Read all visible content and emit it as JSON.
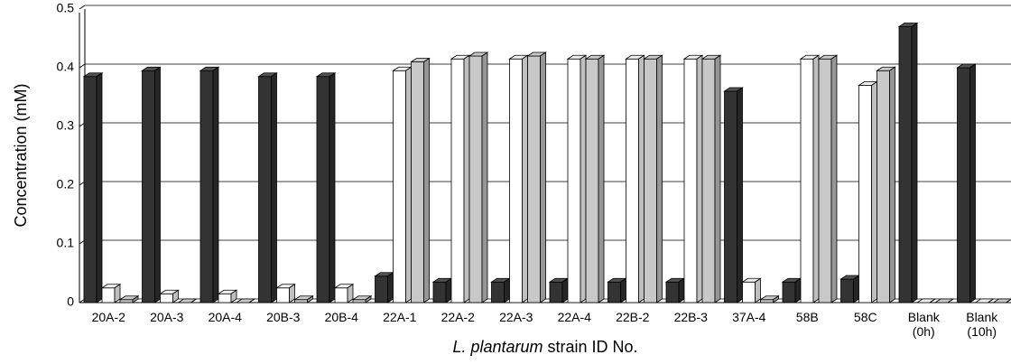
{
  "chart_data": {
    "type": "bar3d",
    "ylabel": "Concentration (mM)",
    "xlabel_italic": "L. plantarum",
    "xlabel": "strain ID No.",
    "categories": [
      "20A-2",
      "20A-3",
      "20A-4",
      "20B-3",
      "20B-4",
      "22A-1",
      "22A-2",
      "22A-3",
      "22A-4",
      "22B-2",
      "22B-3",
      "37A-4",
      "58B",
      "58C",
      "Blank (0h)",
      "Blank (10h)"
    ],
    "series": [
      {
        "color": "#333333",
        "values": [
          0.385,
          0.395,
          0.395,
          0.385,
          0.385,
          0.045,
          0.035,
          0.035,
          0.035,
          0.035,
          0.035,
          0.36,
          0.035,
          0.04,
          0.47,
          0.4
        ]
      },
      {
        "color": "#ffffff",
        "values": [
          0.025,
          0.015,
          0.015,
          0.025,
          0.025,
          0.395,
          0.415,
          0.415,
          0.415,
          0.415,
          0.415,
          0.035,
          0.415,
          0.37,
          0,
          0
        ]
      },
      {
        "color": "#c8c8c8",
        "values": [
          0.005,
          0,
          0,
          0.005,
          0.005,
          0.41,
          0.42,
          0.42,
          0.415,
          0.415,
          0.415,
          0.005,
          0.415,
          0.395,
          0,
          0
        ]
      }
    ],
    "ylim": [
      0,
      0.5
    ],
    "yticks": [
      0,
      0.1,
      0.2,
      0.3,
      0.4,
      0.5
    ],
    "grid": true
  }
}
